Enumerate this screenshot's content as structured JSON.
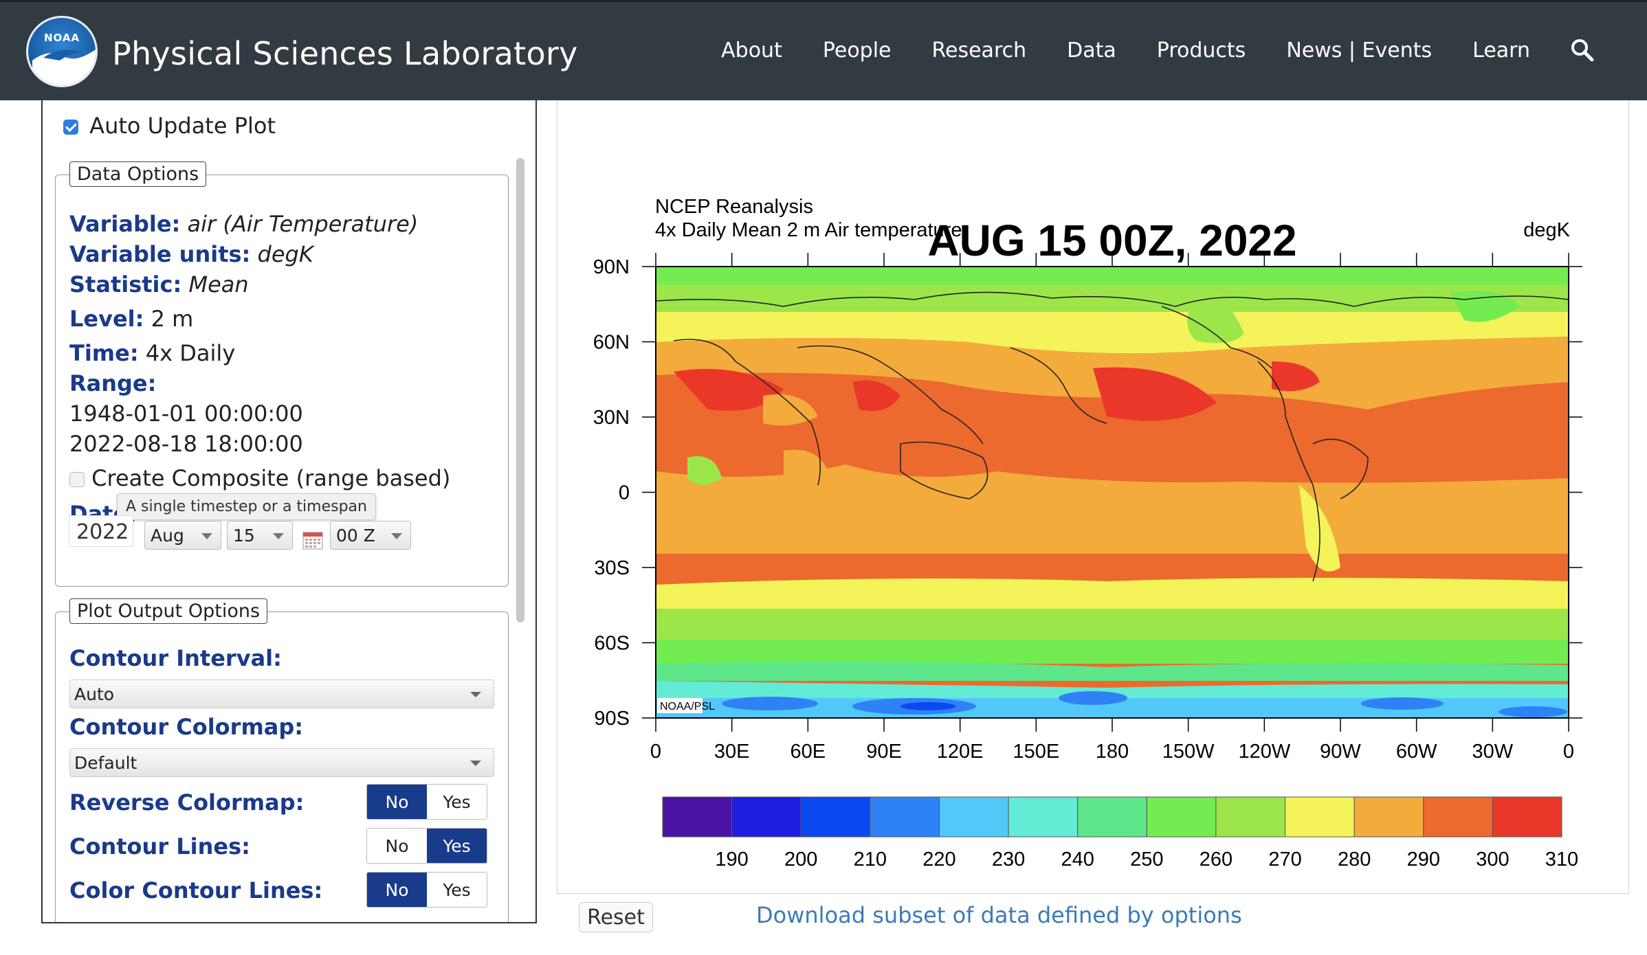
{
  "header": {
    "logo_text": "NOAA",
    "title": "Physical Sciences Laboratory",
    "nav": [
      "About",
      "People",
      "Research",
      "Data",
      "Products",
      "News | Events",
      "Learn"
    ]
  },
  "left_panel": {
    "auto_update_label": "Auto Update Plot",
    "auto_update_checked": true,
    "data_options": {
      "legend": "Data Options",
      "variable_key": "Variable:",
      "variable_value": "air (Air Temperature)",
      "units_key": "Variable units:",
      "units_value": "degK",
      "statistic_key": "Statistic:",
      "statistic_value": "Mean",
      "level_key": "Level:",
      "level_value": "2 m",
      "time_key": "Time:",
      "time_value": "4x Daily",
      "range_key": "Range:",
      "range_start": "1948-01-01 00:00:00",
      "range_end": "2022-08-18 18:00:00",
      "composite_label": "Create Composite (range based)",
      "composite_checked": false,
      "date_key": "Date:",
      "date_tooltip": "A single timestep or a timespan",
      "year": "2022",
      "month": "Aug",
      "day": "15",
      "hour": "00 Z"
    },
    "plot_output_options": {
      "legend": "Plot Output Options",
      "contour_interval_label": "Contour Interval:",
      "contour_interval_value": "Auto",
      "colormap_label": "Contour Colormap:",
      "colormap_value": "Default",
      "reverse_label": "Reverse Colormap:",
      "reverse_value": "No",
      "lines_label": "Contour Lines:",
      "lines_value": "Yes",
      "color_lines_label": "Color Contour Lines:",
      "color_lines_value": "No",
      "no_label": "No",
      "yes_label": "Yes"
    }
  },
  "plot": {
    "title": "AUG 15 00Z, 2022",
    "dataset": "NCEP Reanalysis",
    "subtitle": "4x Daily Mean  2 m Air temperature",
    "units": "degK",
    "credit": "NOAA/PSL",
    "lat_ticks": [
      "90N",
      "60N",
      "30N",
      "0",
      "30S",
      "60S",
      "90S"
    ],
    "lon_ticks": [
      "0",
      "30E",
      "60E",
      "90E",
      "120E",
      "150E",
      "180",
      "150W",
      "120W",
      "90W",
      "60W",
      "30W",
      "0"
    ],
    "colorbar": {
      "labels": [
        "190",
        "200",
        "210",
        "220",
        "230",
        "240",
        "250",
        "260",
        "270",
        "280",
        "290",
        "300",
        "310"
      ],
      "colors": [
        "#4a13a4",
        "#1f1ee0",
        "#0c48f0",
        "#2f82f5",
        "#52c8f8",
        "#62ecd6",
        "#5ee68a",
        "#72ec50",
        "#9ce64a",
        "#f4f35a",
        "#f3ac3c",
        "#ec6a2e",
        "#e9382a"
      ]
    }
  },
  "reset_label": "Reset",
  "download_label": "Download subset of data defined by options"
}
